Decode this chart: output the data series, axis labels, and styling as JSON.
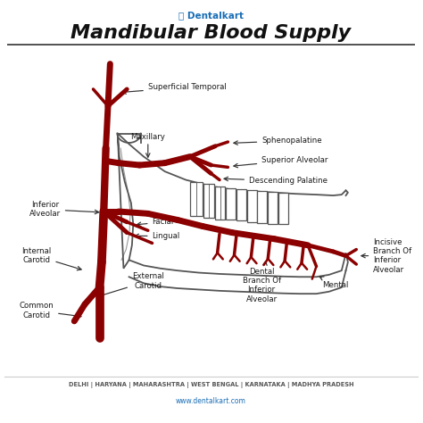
{
  "title": "Mandibular Blood Supply",
  "background_color": "#ffffff",
  "artery_color": "#8B0000",
  "outline_color": "#555555",
  "text_color": "#1a1a1a",
  "footer_line1": "DELHI | HARYANA | MAHARASHTRA | WEST BENGAL | KARNATAKA | MADHYA PRADESH",
  "footer_line2": "www.dentalkart.com",
  "footer_color": "#1a6eb5",
  "footer_text_color": "#555555",
  "header_brand": "Dentalkart",
  "header_brand_color": "#1a6eb5",
  "labels": {
    "superficial_temporal": "Superficial Temporal",
    "maxillary": "Maxillary",
    "sphenopalatine": "Sphenopalatine",
    "superior_alveolar": "Superior Alveolar",
    "descending_palatine": "Descending Palatine",
    "inferior_alveolar": "Inferior\nAlveolar",
    "internal_carotid": "Internal\nCarotid",
    "common_carotid": "Common\nCarotid",
    "facial": "Facial",
    "lingual": "Lingual",
    "external_carotid": "External\nCarotid",
    "incisive_branch": "Incisive\nBranch Of\nInferior\nAlveolar",
    "dental_branch": "Dental\nBranch Of\nInferior\nAlveolar",
    "mental": "Mental"
  }
}
